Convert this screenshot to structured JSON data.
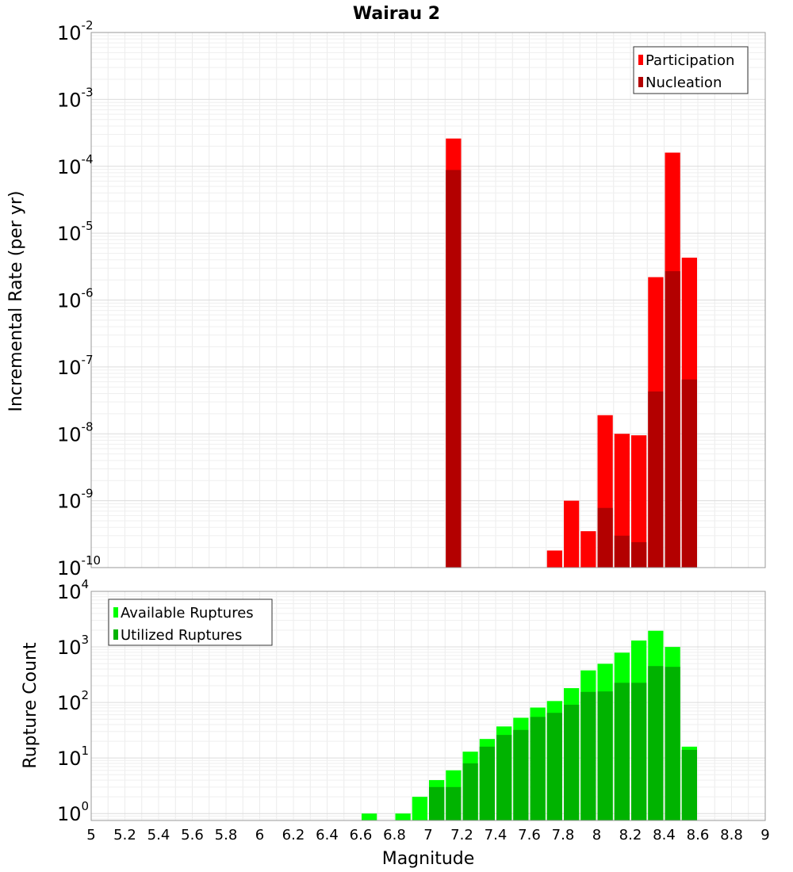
{
  "title": "Wairau 2",
  "colors": {
    "participation": "#ff0000",
    "nucleation": "#b30000",
    "available": "#00ff00",
    "utilized": "#00b300"
  },
  "chart_data": [
    {
      "type": "bar",
      "panel": "top",
      "y_scale": "log",
      "ylabel": "Incremental Rate (per yr)",
      "ylim": [
        1e-10,
        0.01
      ],
      "y_ticks": [
        {
          "base": "10",
          "exp": "-2"
        },
        {
          "base": "10",
          "exp": "-3"
        },
        {
          "base": "10",
          "exp": "-4"
        },
        {
          "base": "10",
          "exp": "-5"
        },
        {
          "base": "10",
          "exp": "-6"
        },
        {
          "base": "10",
          "exp": "-7"
        },
        {
          "base": "10",
          "exp": "-8"
        },
        {
          "base": "10",
          "exp": "-9"
        },
        {
          "base": "10",
          "exp": "-10"
        }
      ],
      "bar_width": 0.1,
      "legend": {
        "placement": "top-right",
        "entries": [
          "Participation",
          "Nucleation"
        ]
      },
      "series": [
        {
          "name": "Participation",
          "x": [
            7.15,
            7.75,
            7.85,
            7.95,
            8.05,
            8.15,
            8.25,
            8.35,
            8.45,
            8.55
          ],
          "values": [
            0.00026,
            1.8e-10,
            1e-09,
            3.5e-10,
            1.9e-08,
            1e-08,
            9.5e-09,
            2.2e-06,
            0.00016,
            4.3e-06
          ]
        },
        {
          "name": "Nucleation",
          "x": [
            7.15,
            8.05,
            8.15,
            8.25,
            8.35,
            8.45,
            8.55
          ],
          "values": [
            8.8e-05,
            7.8e-10,
            3e-10,
            2.4e-10,
            4.3e-08,
            2.7e-06,
            6.5e-08
          ]
        }
      ]
    },
    {
      "type": "bar",
      "panel": "bottom",
      "y_scale": "log",
      "ylabel": "Rupture Count",
      "ylim": [
        0.75,
        10000
      ],
      "y_ticks": [
        {
          "base": "10",
          "exp": "4"
        },
        {
          "base": "10",
          "exp": "3"
        },
        {
          "base": "10",
          "exp": "2"
        },
        {
          "base": "10",
          "exp": "1"
        },
        {
          "base": "10",
          "exp": "0"
        }
      ],
      "bar_width": 0.1,
      "legend": {
        "placement": "top-left",
        "entries": [
          "Available Ruptures",
          "Utilized Ruptures"
        ]
      },
      "series": [
        {
          "name": "Available Ruptures",
          "x": [
            6.65,
            6.85,
            6.95,
            7.05,
            7.15,
            7.25,
            7.35,
            7.45,
            7.55,
            7.65,
            7.75,
            7.85,
            7.95,
            8.05,
            8.15,
            8.25,
            8.35,
            8.45,
            8.55
          ],
          "values": [
            1,
            1,
            2,
            4,
            6,
            13,
            22,
            37,
            53,
            81,
            106,
            181,
            378,
            497,
            788,
            1304,
            1952,
            998,
            16
          ]
        },
        {
          "name": "Utilized Ruptures",
          "x": [
            6.65,
            6.85,
            6.95,
            7.05,
            7.15,
            7.25,
            7.35,
            7.45,
            7.55,
            7.65,
            7.75,
            7.85,
            7.95,
            8.05,
            8.15,
            8.25,
            8.35,
            8.45,
            8.55
          ],
          "values": [
            0,
            0,
            0,
            3,
            3,
            8,
            16,
            26,
            32,
            55,
            65,
            91,
            155,
            158,
            226,
            226,
            452,
            438,
            14
          ]
        }
      ]
    }
  ],
  "x_axis": {
    "xlabel": "Magnitude",
    "xlim": [
      5,
      9
    ],
    "ticks": [
      "5",
      "5.2",
      "5.4",
      "5.6",
      "5.8",
      "6",
      "6.2",
      "6.4",
      "6.6",
      "6.8",
      "7",
      "7.2",
      "7.4",
      "7.6",
      "7.8",
      "8",
      "8.2",
      "8.4",
      "8.6",
      "8.8",
      "9"
    ]
  }
}
